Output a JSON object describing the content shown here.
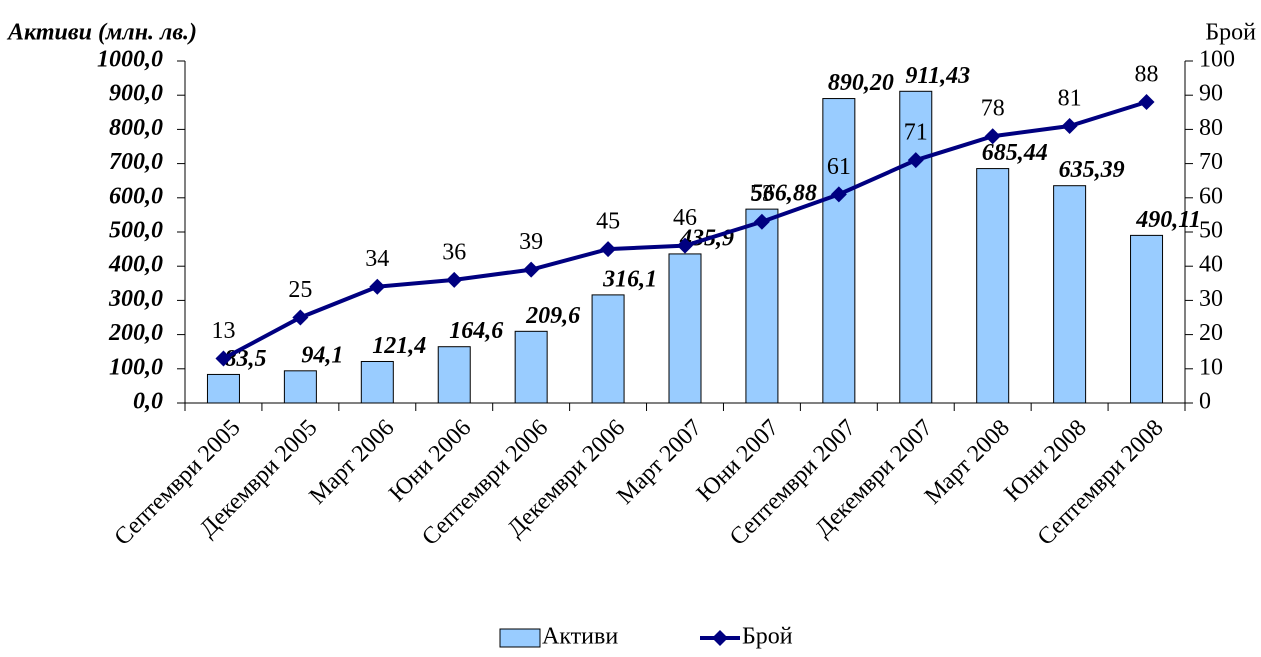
{
  "chart_data": {
    "type": "bar",
    "y_label": "Активи (млн. лв.)",
    "y2_label": "Брой",
    "categories": [
      "Септември 2005",
      "Декември 2005",
      "Март 2006",
      "Юни 2006",
      "Септември 2006",
      "Декември 2006",
      "Март 2007",
      "Юни 2007",
      "Септември 2007",
      "Декември 2007",
      "Март 2008",
      "Юни 2008",
      "Септември 2008"
    ],
    "series": [
      {
        "name": "Активи",
        "type": "bar",
        "color": "#99ccff",
        "values": [
          83.5,
          94.1,
          121.4,
          164.6,
          209.6,
          316.1,
          435.9,
          566.88,
          890.2,
          911.43,
          685.44,
          635.39,
          490.11
        ],
        "value_labels": [
          "83,5",
          "94,1",
          "121,4",
          "164,6",
          "209,6",
          "316,1",
          "435,9",
          "566,88",
          "890,20",
          "911,43",
          "685,44",
          "635,39",
          "490,11"
        ]
      },
      {
        "name": "Брой",
        "type": "line",
        "color": "#000080",
        "axis": "y2",
        "values": [
          13,
          25,
          34,
          36,
          39,
          45,
          46,
          53,
          61,
          71,
          78,
          81,
          88
        ]
      }
    ],
    "ylim": [
      0,
      1000
    ],
    "yticks": [
      {
        "value": 0,
        "label": "0,0"
      },
      {
        "value": 100,
        "label": "100,0"
      },
      {
        "value": 200,
        "label": "200,0"
      },
      {
        "value": 300,
        "label": "300,0"
      },
      {
        "value": 400,
        "label": "400,0"
      },
      {
        "value": 500,
        "label": "500,0"
      },
      {
        "value": 600,
        "label": "600,0"
      },
      {
        "value": 700,
        "label": "700,0"
      },
      {
        "value": 800,
        "label": "800,0"
      },
      {
        "value": 900,
        "label": "900,0"
      },
      {
        "value": 1000,
        "label": "1000,0"
      }
    ],
    "y2lim": [
      0,
      100
    ],
    "y2ticks": [
      0,
      10,
      20,
      30,
      40,
      50,
      60,
      70,
      80,
      90,
      100
    ],
    "legend": "bottom"
  }
}
